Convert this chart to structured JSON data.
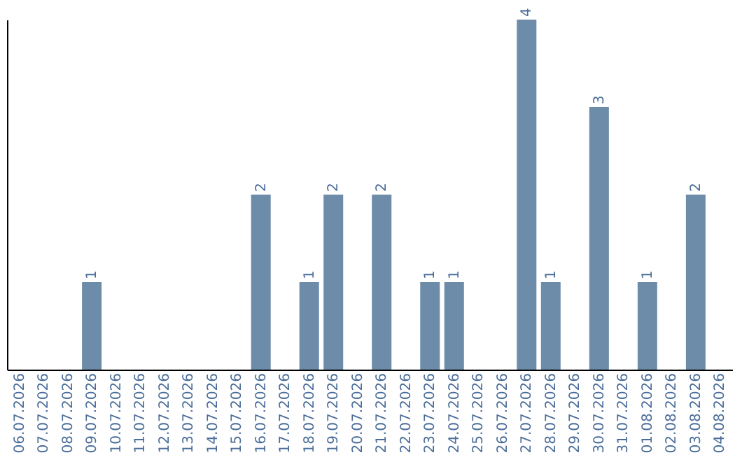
{
  "chart_data": {
    "type": "bar",
    "categories": [
      "06.07.2026",
      "07.07.2026",
      "08.07.2026",
      "09.07.2026",
      "10.07.2026",
      "11.07.2026",
      "12.07.2026",
      "13.07.2026",
      "14.07.2026",
      "15.07.2026",
      "16.07.2026",
      "17.07.2026",
      "18.07.2026",
      "19.07.2026",
      "20.07.2026",
      "21.07.2026",
      "22.07.2026",
      "23.07.2026",
      "24.07.2026",
      "25.07.2026",
      "26.07.2026",
      "27.07.2026",
      "28.07.2026",
      "29.07.2026",
      "30.07.2026",
      "31.07.2026",
      "01.08.2026",
      "02.08.2026",
      "03.08.2026",
      "04.08.2026"
    ],
    "series": [
      {
        "color": "#6d8caa",
        "values": [
          0,
          0,
          0,
          1,
          0,
          0,
          0,
          0,
          0,
          0,
          2,
          0,
          1,
          2,
          0,
          2,
          0,
          1,
          1,
          0,
          0,
          4,
          1,
          0,
          3,
          0,
          1,
          0,
          2,
          0
        ],
        "value_labels": [
          null,
          null,
          null,
          "1",
          null,
          null,
          null,
          null,
          null,
          null,
          "2",
          null,
          "1",
          "2",
          null,
          "2",
          null,
          "1",
          "1",
          null,
          null,
          "4",
          "1",
          null,
          "3",
          null,
          "1",
          null,
          "2",
          null
        ]
      }
    ],
    "ylim": [
      0,
      4
    ],
    "tick_labels": "x"
  }
}
